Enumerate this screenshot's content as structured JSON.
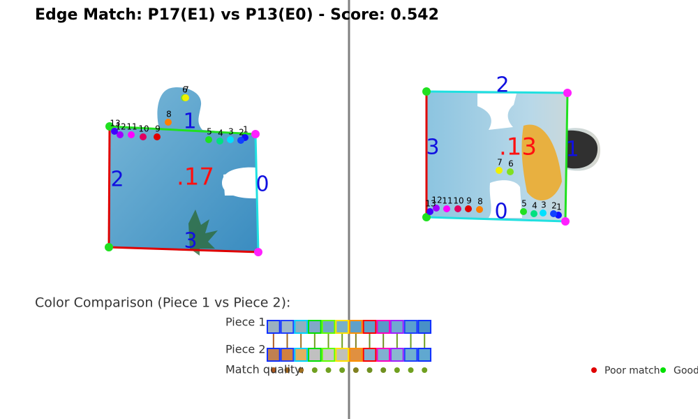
{
  "title": "Edge Match: P17(E1) vs P13(E0) - Score: 0.542",
  "left_piece": {
    "center_label": ".17",
    "edge_labels": [
      "0",
      "1",
      "2",
      "3"
    ],
    "point_labels": [
      "1",
      "2",
      "3",
      "4",
      "5",
      "6",
      "7",
      "8",
      "9",
      "10",
      "11",
      "12",
      "13"
    ]
  },
  "right_piece": {
    "center_label": ".13",
    "edge_labels": [
      "0",
      "1",
      "2",
      "3"
    ],
    "point_labels": [
      "1",
      "2",
      "3",
      "4",
      "5",
      "6",
      "7",
      "8",
      "9",
      "10",
      "11",
      "12",
      "13"
    ]
  },
  "color_comparison": {
    "heading": "Color Comparison (Piece 1 vs Piece 2):",
    "row1_label": "Piece 1",
    "row2_label": "Piece 2",
    "quality_label": "Match quality:",
    "piece1_colors": [
      "#9ab0c0",
      "#a0b8c8",
      "#8fb0c0",
      "#80a8c8",
      "#70a8c8",
      "#78b0c8",
      "#5fa0c8",
      "#60a0c8",
      "#5898c8",
      "#70a8d0",
      "#5aa0d0",
      "#4890c8"
    ],
    "piece2_colors": [
      "#c08050",
      "#d08040",
      "#e0b060",
      "#c0c0c0",
      "#c8c8c8",
      "#c0c0b8",
      "#e09040",
      "#80b0d0",
      "#80b0d0",
      "#8ab8d0",
      "#70b0d0",
      "#60a8d0"
    ],
    "border_colors": [
      "#1030ff",
      "#2040ff",
      "#00d0ff",
      "#00e000",
      "#60ff00",
      "#ffe000",
      "#ff9000",
      "#ff0000",
      "#ff00c0",
      "#a020ff",
      "#2040ff",
      "#1030ff"
    ],
    "quality_colors": [
      "#b05a20",
      "#a06820",
      "#a07020",
      "#70a020",
      "#70a020",
      "#70a020",
      "#808020",
      "#709020",
      "#709020",
      "#70a020",
      "#70a020",
      "#70a020"
    ]
  },
  "legend": {
    "items": [
      {
        "label": "Poor match",
        "color": "#e00000"
      },
      {
        "label": "Good match",
        "color": "#00e000"
      }
    ]
  }
}
